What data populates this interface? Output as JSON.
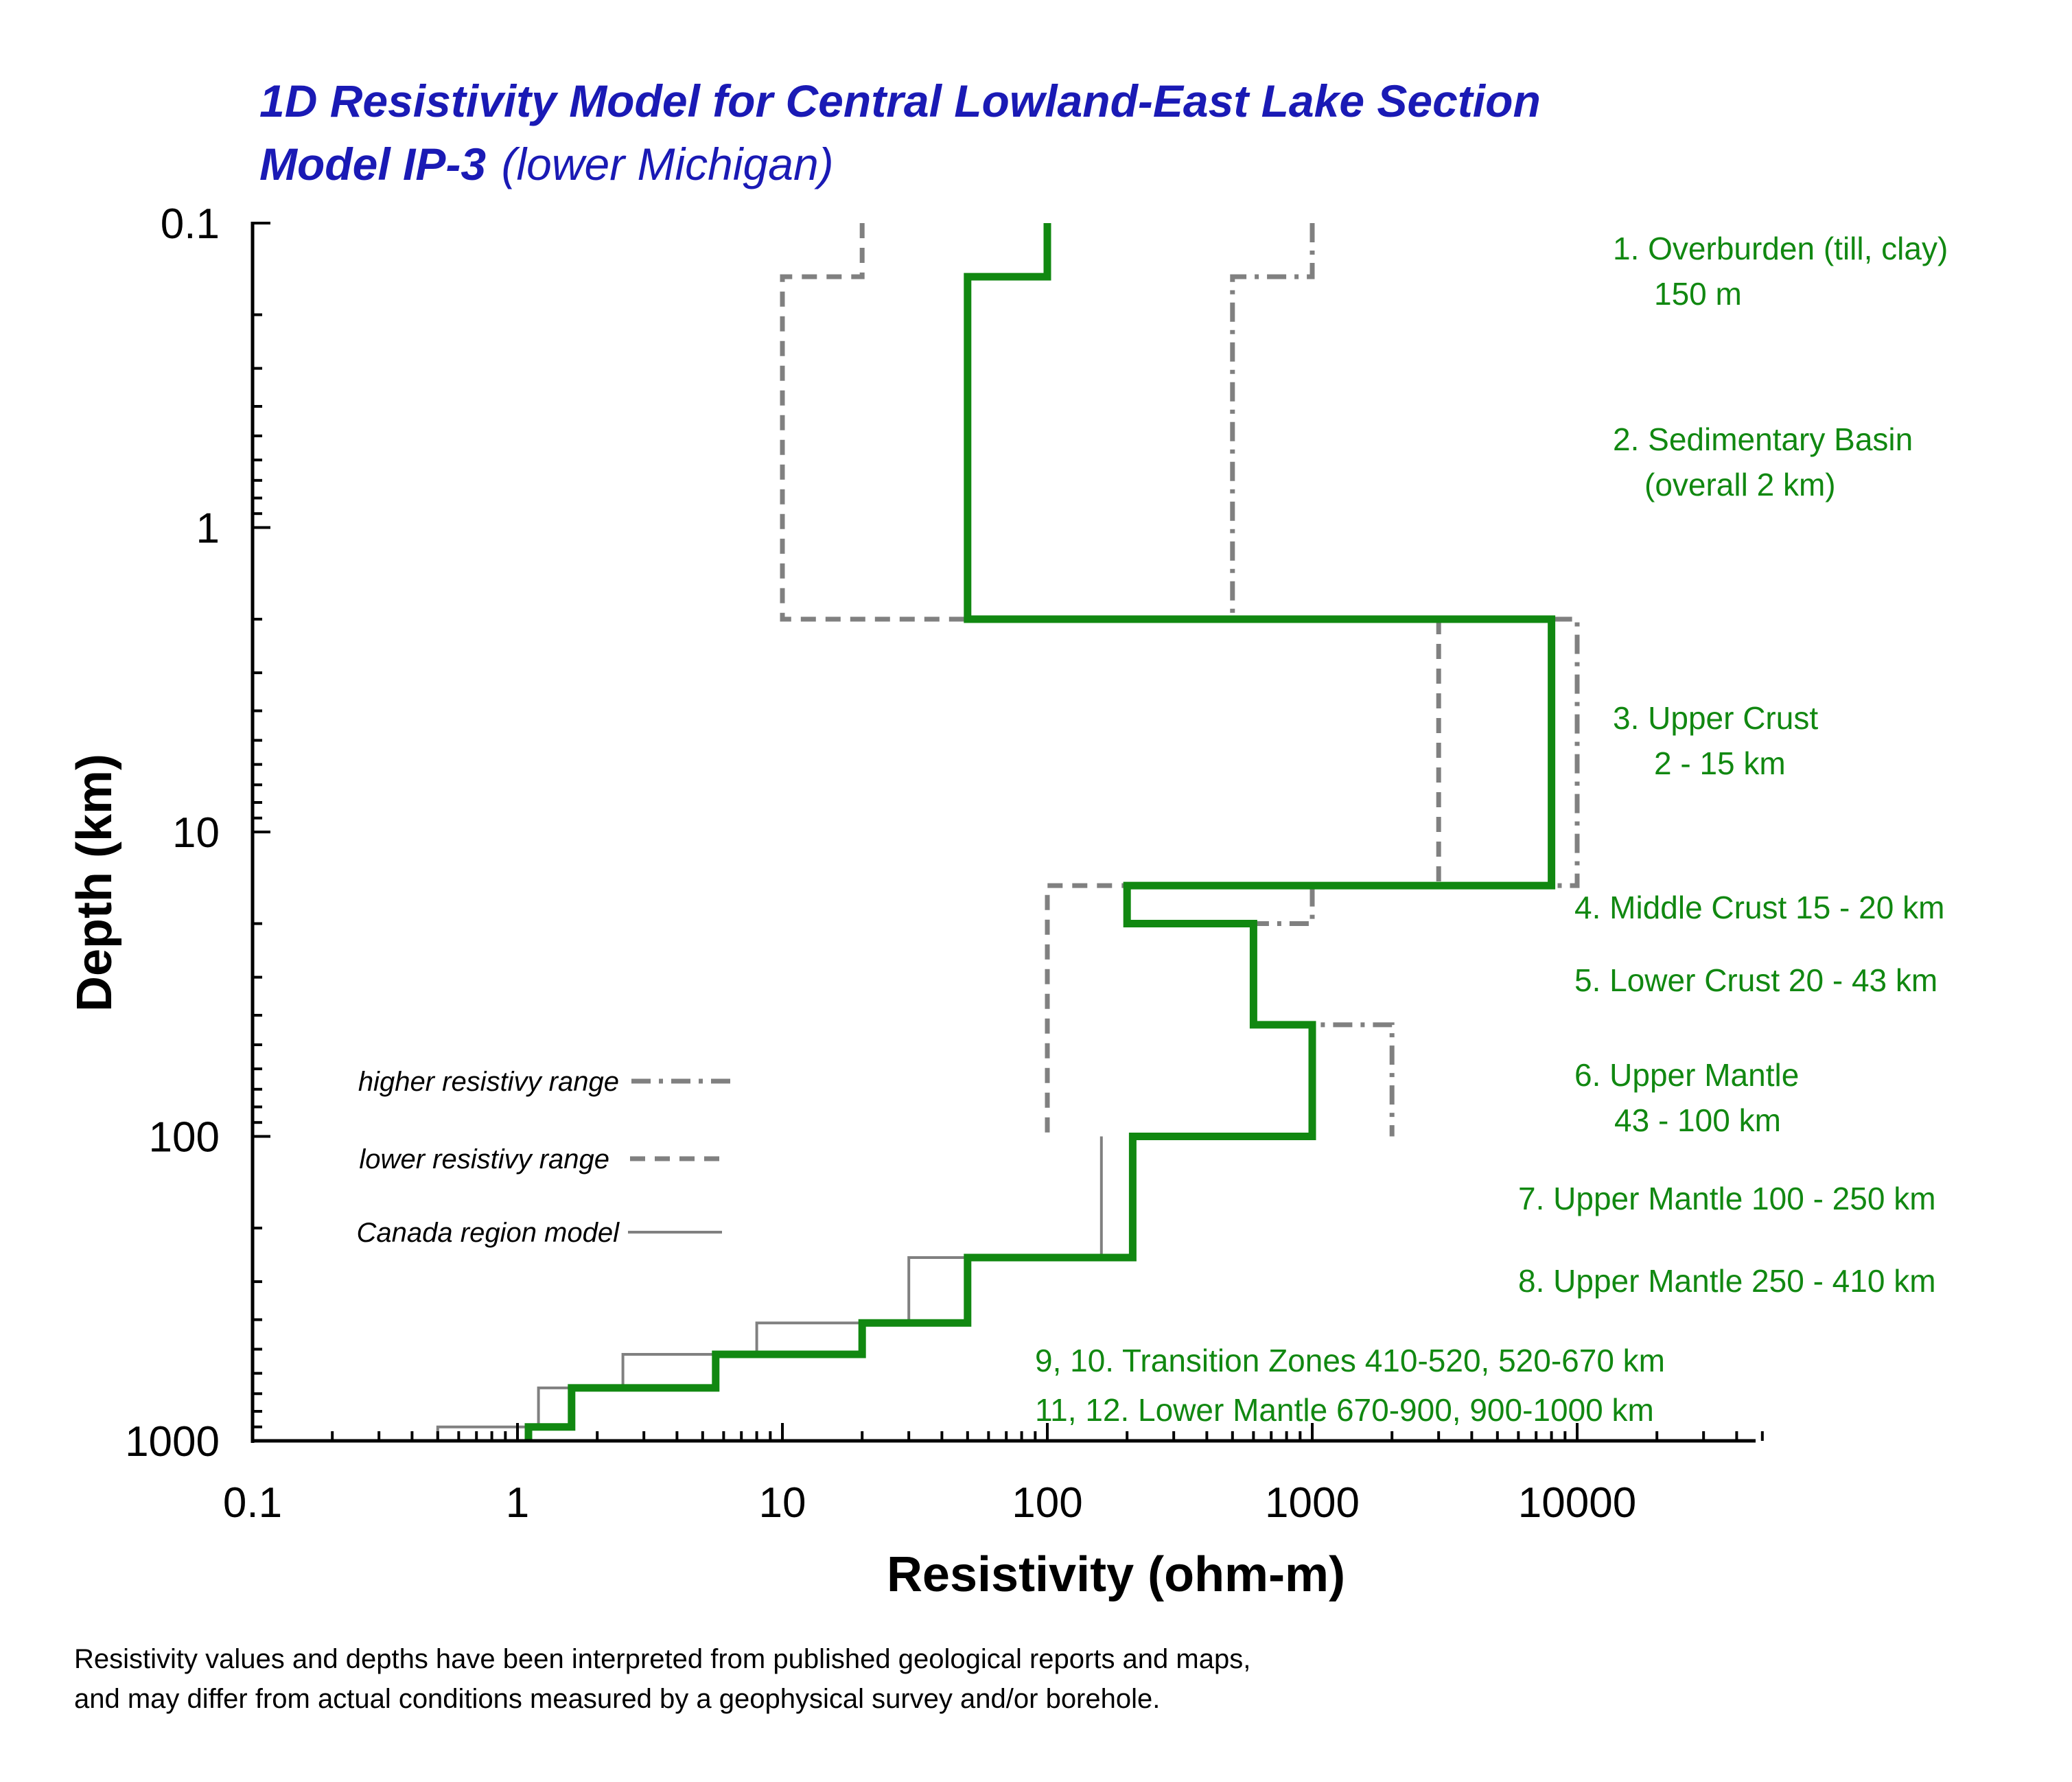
{
  "chart_data": {
    "type": "line",
    "title": "1D Resistivity Model for Central Lowland-East Lake Section",
    "subtitle_bold": "Model IP-3",
    "subtitle_normal": "(lower Michigan)",
    "xlabel": "Resistivity (ohm-m)",
    "ylabel": "Depth (km)",
    "x_scale": "log",
    "y_scale": "log",
    "y_inverted": true,
    "xlim": [
      0.1,
      50000
    ],
    "ylim": [
      0.1,
      1000
    ],
    "x_ticks": [
      0.1,
      1,
      10,
      100,
      1000,
      10000
    ],
    "x_tick_labels": [
      "0.1",
      "1",
      "10",
      "100",
      "1000",
      "10000"
    ],
    "y_ticks": [
      0.1,
      1,
      10,
      100,
      1000
    ],
    "y_tick_labels": [
      "0.1",
      "1",
      "10",
      "100",
      "1000"
    ],
    "grid": false,
    "series": [
      {
        "name": "Canada region model",
        "color": "#808080",
        "style": "solid-thin",
        "points": [
          [
            160,
            100
          ],
          [
            160,
            250
          ],
          [
            30,
            250
          ],
          [
            30,
            410
          ],
          [
            8,
            410
          ],
          [
            8,
            520
          ],
          [
            2.5,
            520
          ],
          [
            2.5,
            670
          ],
          [
            1.2,
            670
          ],
          [
            1.2,
            900
          ],
          [
            0.5,
            900
          ],
          [
            0.5,
            1000
          ]
        ]
      },
      {
        "name": "lower resistivy range",
        "color": "#808080",
        "style": "dashed",
        "points": [
          [
            20,
            0.1
          ],
          [
            20,
            0.15
          ],
          [
            10,
            0.15
          ],
          [
            10,
            2
          ],
          [
            50,
            2
          ]
        ],
        "points_2": [
          [
            3000,
            2
          ],
          [
            3000,
            15
          ],
          [
            100,
            15
          ],
          [
            100,
            100
          ]
        ]
      },
      {
        "name": "higher resistivy range",
        "color": "#808080",
        "style": "dash-dot",
        "points": [
          [
            1000,
            0.1
          ],
          [
            1000,
            0.15
          ],
          [
            500,
            0.15
          ],
          [
            500,
            2
          ],
          [
            10000,
            2
          ],
          [
            10000,
            15
          ],
          [
            1000,
            15
          ],
          [
            1000,
            20
          ],
          [
            200,
            20
          ]
        ],
        "points_2": [
          [
            600,
            43
          ],
          [
            2000,
            43
          ],
          [
            2000,
            100
          ]
        ]
      },
      {
        "name": "Model IP-3",
        "color": "#118811",
        "style": "thick",
        "points": [
          [
            100,
            0.1
          ],
          [
            100,
            0.15
          ],
          [
            50,
            0.15
          ],
          [
            50,
            2
          ],
          [
            8000,
            2
          ],
          [
            8000,
            15
          ],
          [
            200,
            15
          ],
          [
            200,
            20
          ],
          [
            600,
            20
          ],
          [
            600,
            43
          ],
          [
            1000,
            43
          ],
          [
            1000,
            100
          ],
          [
            210,
            100
          ],
          [
            210,
            250
          ],
          [
            50,
            250
          ],
          [
            50,
            410
          ],
          [
            20,
            410
          ],
          [
            20,
            520
          ],
          [
            5.6,
            520
          ],
          [
            5.6,
            670
          ],
          [
            1.6,
            670
          ],
          [
            1.6,
            900
          ],
          [
            1.1,
            900
          ],
          [
            1.1,
            1000
          ]
        ]
      }
    ],
    "legend": {
      "placement": "bottom-left",
      "items": [
        "higher resistivy range",
        "lower resistivy range",
        "Canada region model"
      ]
    },
    "annotations": [
      [
        "1. Overburden (till, clay)",
        "150 m"
      ],
      [
        "2. Sedimentary Basin",
        "(overall 2 km)"
      ],
      [
        "3. Upper Crust",
        "2 - 15 km"
      ],
      [
        "4. Middle Crust 15 - 20 km"
      ],
      [
        "5. Lower Crust 20 - 43 km"
      ],
      [
        "6. Upper Mantle",
        "43 - 100 km"
      ],
      [
        "7. Upper Mantle 100 - 250 km"
      ],
      [
        "8. Upper Mantle  250 - 410 km"
      ],
      [
        "9, 10. Transition Zones 410-520, 520-670 km"
      ],
      [
        "11, 12. Lower Mantle 670-900, 900-1000 km"
      ]
    ],
    "footnote": [
      "Resistivity values and depths have been interpreted from published geological reports and maps,",
      " and may differ from actual conditions measured by a geophysical survey and/or borehole."
    ]
  }
}
